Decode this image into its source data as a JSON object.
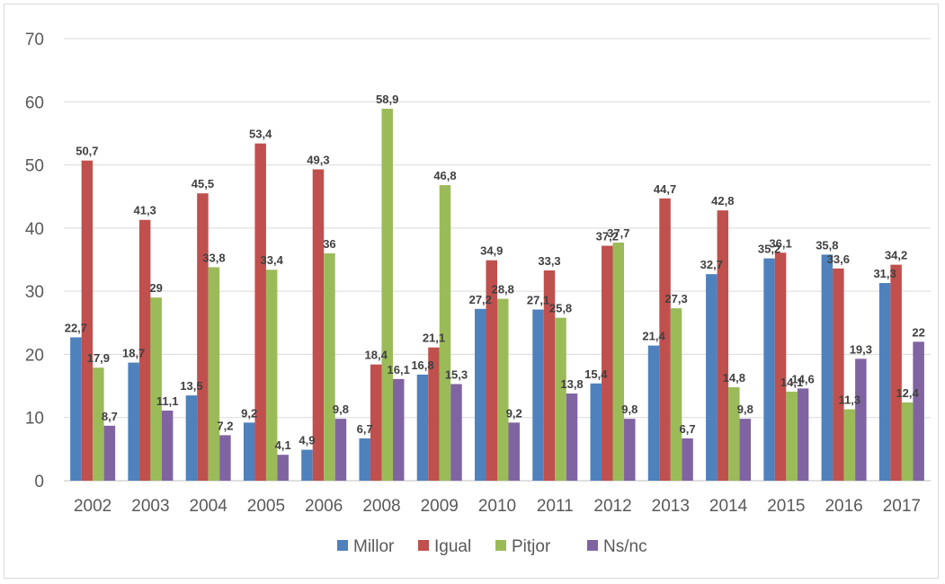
{
  "chart_data": {
    "type": "bar",
    "categories": [
      "2002",
      "2003",
      "2004",
      "2005",
      "2006",
      "2008",
      "2009",
      "2010",
      "2011",
      "2012",
      "2013",
      "2014",
      "2015",
      "2016",
      "2017"
    ],
    "series": [
      {
        "name": "Millor",
        "color": "#4f81bd",
        "values": [
          22.7,
          18.7,
          13.5,
          9.2,
          4.9,
          6.7,
          16.8,
          27.2,
          27.1,
          15.4,
          21.4,
          32.7,
          35.2,
          35.8,
          31.3
        ],
        "labels": [
          "22,7",
          "18,7",
          "13,5",
          "9,2",
          "4,9",
          "6,7",
          "16,8",
          "27,2",
          "27,1",
          "15,4",
          "21,4",
          "32,7",
          "35,2",
          "35,8",
          "31,3"
        ]
      },
      {
        "name": "Igual",
        "color": "#c0504d",
        "values": [
          50.7,
          41.3,
          45.5,
          53.4,
          49.3,
          18.4,
          21.1,
          34.9,
          33.3,
          37.2,
          44.7,
          42.8,
          36.1,
          33.6,
          34.2
        ],
        "labels": [
          "50,7",
          "41,3",
          "45,5",
          "53,4",
          "49,3",
          "18,4",
          "21,1",
          "34,9",
          "33,3",
          "37,2",
          "44,7",
          "42,8",
          "36,1",
          "33,6",
          "34,2"
        ]
      },
      {
        "name": "Pitjor",
        "color": "#9bbb59",
        "values": [
          17.9,
          29,
          33.8,
          33.4,
          36,
          58.9,
          46.8,
          28.8,
          25.8,
          37.7,
          27.3,
          14.8,
          14.1,
          11.3,
          12.4
        ],
        "labels": [
          "17,9",
          "29",
          "33,8",
          "33,4",
          "36",
          "58,9",
          "46,8",
          "28,8",
          "25,8",
          "37,7",
          "27,3",
          "14,8",
          "14,1",
          "11,3",
          "12,4"
        ]
      },
      {
        "name": "Ns/nc",
        "color": "#8064a2",
        "values": [
          8.7,
          11.1,
          7.2,
          4.1,
          9.8,
          16.1,
          15.3,
          9.2,
          13.8,
          9.8,
          6.7,
          9.8,
          14.6,
          19.3,
          22
        ],
        "labels": [
          "8,7",
          "11,1",
          "7,2",
          "4,1",
          "9,8",
          "16,1",
          "15,3",
          "9,2",
          "13,8",
          "9,8",
          "6,7",
          "9,8",
          "14,6",
          "19,3",
          "22"
        ]
      }
    ],
    "ylim": [
      0,
      70
    ],
    "yticks": [
      0,
      10,
      20,
      30,
      40,
      50,
      60,
      70
    ],
    "grid": true,
    "legend": "bottom"
  }
}
